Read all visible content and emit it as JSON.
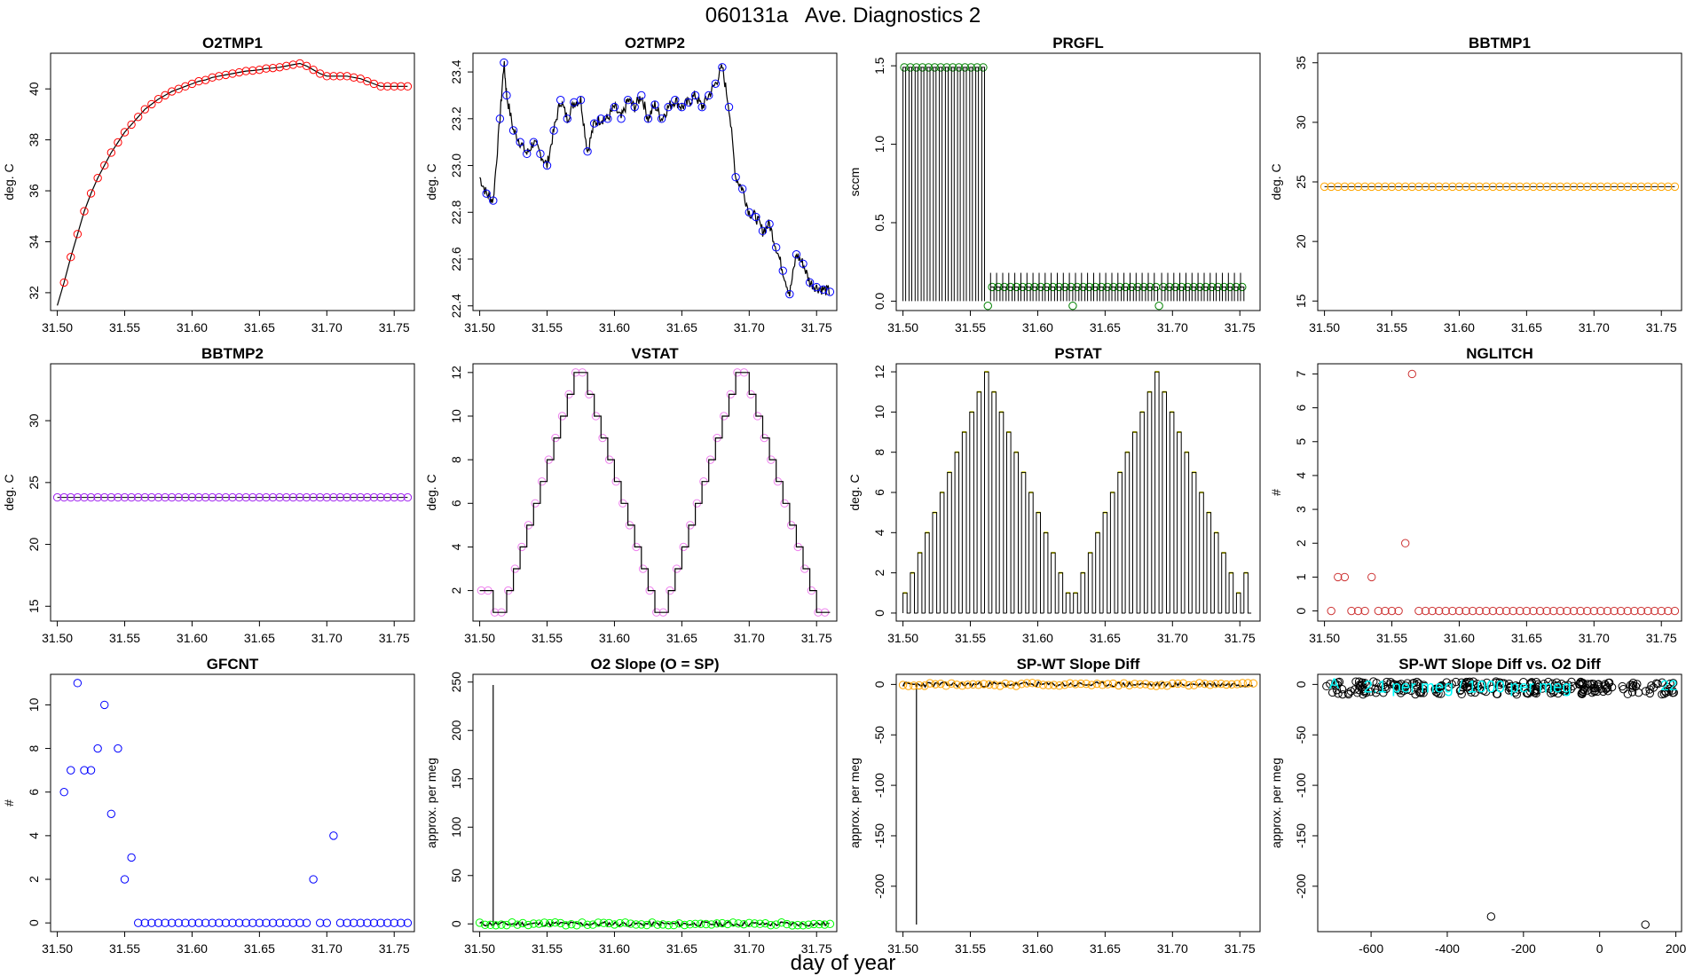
{
  "figure": {
    "title": "060131a   Ave. Diagnostics 2",
    "xlabel": "day of year"
  },
  "chart_data": [
    {
      "id": "o2tmp1",
      "type": "line",
      "title": "O2TMP1",
      "ylabel": "deg. C",
      "xlim": [
        31.495,
        31.765
      ],
      "ylim": [
        31.3,
        41.4
      ],
      "xticks": [
        31.5,
        31.55,
        31.6,
        31.65,
        31.7,
        31.75
      ],
      "xtick_labels": [
        "31.50",
        "31.55",
        "31.60",
        "31.65",
        "31.70",
        "31.75"
      ],
      "yticks": [
        32,
        34,
        36,
        38,
        40
      ],
      "ytick_labels": [
        "32",
        "34",
        "36",
        "38",
        "40"
      ],
      "x": [
        31.5,
        31.505,
        31.51,
        31.515,
        31.52,
        31.525,
        31.53,
        31.535,
        31.54,
        31.545,
        31.55,
        31.555,
        31.56,
        31.565,
        31.57,
        31.575,
        31.58,
        31.585,
        31.59,
        31.595,
        31.6,
        31.605,
        31.61,
        31.615,
        31.62,
        31.625,
        31.63,
        31.635,
        31.64,
        31.645,
        31.65,
        31.655,
        31.66,
        31.665,
        31.67,
        31.675,
        31.68,
        31.685,
        31.69,
        31.695,
        31.7,
        31.705,
        31.71,
        31.715,
        31.72,
        31.725,
        31.73,
        31.735,
        31.74,
        31.745,
        31.75,
        31.755,
        31.76
      ],
      "y": [
        31.5,
        32.4,
        33.4,
        34.3,
        35.2,
        35.9,
        36.5,
        37.0,
        37.5,
        37.9,
        38.3,
        38.6,
        38.9,
        39.2,
        39.4,
        39.6,
        39.75,
        39.9,
        40.0,
        40.1,
        40.2,
        40.3,
        40.35,
        40.45,
        40.5,
        40.55,
        40.6,
        40.65,
        40.7,
        40.72,
        40.75,
        40.8,
        40.82,
        40.85,
        40.9,
        40.95,
        41.0,
        40.9,
        40.75,
        40.6,
        40.5,
        40.5,
        40.5,
        40.5,
        40.45,
        40.4,
        40.3,
        40.2,
        40.1,
        40.1,
        40.1,
        40.1,
        40.1
      ],
      "line_color": "#000000",
      "marker_color": "#ff0000"
    },
    {
      "id": "o2tmp2",
      "type": "line",
      "title": "O2TMP2",
      "ylabel": "deg. C",
      "xlim": [
        31.495,
        31.765
      ],
      "ylim": [
        22.38,
        23.48
      ],
      "xticks": [
        31.5,
        31.55,
        31.6,
        31.65,
        31.7,
        31.75
      ],
      "xtick_labels": [
        "31.50",
        "31.55",
        "31.60",
        "31.65",
        "31.70",
        "31.75"
      ],
      "yticks": [
        22.4,
        22.6,
        22.8,
        23.0,
        23.2,
        23.4
      ],
      "ytick_labels": [
        "22.4",
        "22.6",
        "22.8",
        "23.0",
        "23.2",
        "23.4"
      ],
      "x": [
        31.5,
        31.505,
        31.51,
        31.515,
        31.518,
        31.52,
        31.525,
        31.53,
        31.535,
        31.54,
        31.545,
        31.55,
        31.555,
        31.56,
        31.565,
        31.57,
        31.575,
        31.58,
        31.585,
        31.59,
        31.595,
        31.6,
        31.605,
        31.61,
        31.615,
        31.62,
        31.625,
        31.63,
        31.635,
        31.64,
        31.645,
        31.65,
        31.655,
        31.66,
        31.665,
        31.67,
        31.675,
        31.68,
        31.685,
        31.69,
        31.695,
        31.7,
        31.705,
        31.71,
        31.715,
        31.72,
        31.725,
        31.73,
        31.735,
        31.74,
        31.745,
        31.75,
        31.755,
        31.76
      ],
      "y": [
        22.95,
        22.88,
        22.85,
        23.2,
        23.44,
        23.3,
        23.15,
        23.1,
        23.05,
        23.1,
        23.05,
        23.0,
        23.15,
        23.28,
        23.2,
        23.27,
        23.28,
        23.06,
        23.18,
        23.2,
        23.2,
        23.25,
        23.2,
        23.28,
        23.25,
        23.3,
        23.2,
        23.26,
        23.2,
        23.25,
        23.28,
        23.25,
        23.27,
        23.3,
        23.25,
        23.3,
        23.35,
        23.42,
        23.25,
        22.95,
        22.9,
        22.8,
        22.78,
        22.72,
        22.75,
        22.65,
        22.55,
        22.45,
        22.62,
        22.58,
        22.5,
        22.48,
        22.47,
        22.46
      ],
      "line_color": "#000000",
      "marker_color": "#0000ff"
    },
    {
      "id": "prgfl",
      "type": "line",
      "title": "PRGFL",
      "ylabel": "sccm",
      "xlim": [
        31.495,
        31.765
      ],
      "ylim": [
        -0.06,
        1.58
      ],
      "xticks": [
        31.5,
        31.55,
        31.6,
        31.65,
        31.7,
        31.75
      ],
      "xtick_labels": [
        "31.50",
        "31.55",
        "31.60",
        "31.65",
        "31.70",
        "31.75"
      ],
      "yticks": [
        0.0,
        0.5,
        1.0,
        1.5
      ],
      "ytick_labels": [
        "0.0",
        "0.5",
        "1.0",
        "1.5"
      ],
      "high_levels": [
        1.49,
        0.09,
        0.09,
        0.09,
        0.09
      ],
      "segments_x": [
        [
          31.5,
          31.562
        ],
        [
          31.565,
          31.625
        ],
        [
          31.628,
          31.69
        ],
        [
          31.692,
          31.755
        ]
      ],
      "line_color": "#000000",
      "marker_color": "#008000"
    },
    {
      "id": "bbtmp1",
      "type": "line",
      "title": "BBTMP1",
      "ylabel": "deg. C",
      "xlim": [
        31.495,
        31.765
      ],
      "ylim": [
        14.2,
        35.8
      ],
      "xticks": [
        31.5,
        31.55,
        31.6,
        31.65,
        31.7,
        31.75
      ],
      "xtick_labels": [
        "31.50",
        "31.55",
        "31.60",
        "31.65",
        "31.70",
        "31.75"
      ],
      "yticks": [
        15,
        20,
        25,
        30,
        35
      ],
      "ytick_labels": [
        "15",
        "20",
        "25",
        "30",
        "35"
      ],
      "constant": 24.6,
      "x_start": 31.5,
      "x_end": 31.76,
      "step": 0.005,
      "line_color": "#000000",
      "marker_color": "#ffa500"
    },
    {
      "id": "bbtmp2",
      "type": "line",
      "title": "BBTMP2",
      "ylabel": "deg. C",
      "xlim": [
        31.495,
        31.765
      ],
      "ylim": [
        13.8,
        34.6
      ],
      "xticks": [
        31.5,
        31.55,
        31.6,
        31.65,
        31.7,
        31.75
      ],
      "xtick_labels": [
        "31.50",
        "31.55",
        "31.60",
        "31.65",
        "31.70",
        "31.75"
      ],
      "yticks": [
        15,
        20,
        25,
        30
      ],
      "ytick_labels": [
        "15",
        "20",
        "25",
        "30"
      ],
      "constant": 23.8,
      "x_start": 31.5,
      "x_end": 31.76,
      "step": 0.005,
      "line_color": "#000000",
      "marker_color": "#a020f0"
    },
    {
      "id": "vstat",
      "type": "step",
      "title": "VSTAT",
      "ylabel": "deg. C",
      "xlim": [
        31.495,
        31.765
      ],
      "ylim": [
        0.6,
        12.4
      ],
      "xticks": [
        31.5,
        31.55,
        31.6,
        31.65,
        31.7,
        31.75
      ],
      "xtick_labels": [
        "31.50",
        "31.55",
        "31.60",
        "31.65",
        "31.70",
        "31.75"
      ],
      "yticks": [
        2,
        4,
        6,
        8,
        10,
        12
      ],
      "ytick_labels": [
        "2",
        "4",
        "6",
        "8",
        "10",
        "12"
      ],
      "levels": [
        2,
        2,
        1,
        1,
        2,
        3,
        4,
        5,
        6,
        7,
        8,
        9,
        10,
        11,
        12,
        12,
        11,
        10,
        9,
        8,
        7,
        6,
        5,
        4,
        3,
        2,
        1,
        1,
        2,
        3,
        4,
        5,
        6,
        7,
        8,
        9,
        10,
        11,
        12,
        12,
        11,
        10,
        9,
        8,
        7,
        6,
        5,
        4,
        3,
        2,
        1,
        1
      ],
      "x_start": 31.5,
      "step": 0.005,
      "line_color": "#000000",
      "marker_color": "#ee82ee"
    },
    {
      "id": "pstat",
      "type": "pulse",
      "title": "PSTAT",
      "ylabel": "deg. C",
      "xlim": [
        31.495,
        31.765
      ],
      "ylim": [
        -0.4,
        12.4
      ],
      "xticks": [
        31.5,
        31.55,
        31.6,
        31.65,
        31.7,
        31.75
      ],
      "xtick_labels": [
        "31.50",
        "31.55",
        "31.60",
        "31.65",
        "31.70",
        "31.75"
      ],
      "yticks": [
        0,
        2,
        4,
        6,
        8,
        10,
        12
      ],
      "ytick_labels": [
        "0",
        "2",
        "4",
        "6",
        "8",
        "10",
        "12"
      ],
      "levels": [
        1,
        2,
        3,
        4,
        5,
        6,
        7,
        8,
        9,
        10,
        11,
        12,
        11,
        10,
        9,
        8,
        7,
        6,
        5,
        4,
        3,
        2,
        1,
        1,
        2,
        3,
        4,
        5,
        6,
        7,
        8,
        9,
        10,
        11,
        12,
        11,
        10,
        9,
        8,
        7,
        6,
        5,
        4,
        3,
        2,
        1,
        2
      ],
      "x_start": 31.5,
      "step": 0.0055,
      "line_color": "#000000",
      "marker_color": "#ffff00"
    },
    {
      "id": "nglitch",
      "type": "scatter",
      "title": "NGLITCH",
      "ylabel": "#",
      "xlim": [
        31.495,
        31.765
      ],
      "ylim": [
        -0.3,
        7.3
      ],
      "xticks": [
        31.5,
        31.55,
        31.6,
        31.65,
        31.7,
        31.75
      ],
      "xtick_labels": [
        "31.50",
        "31.55",
        "31.60",
        "31.65",
        "31.70",
        "31.75"
      ],
      "yticks": [
        0,
        1,
        2,
        3,
        4,
        5,
        6,
        7
      ],
      "ytick_labels": [
        "0",
        "1",
        "2",
        "3",
        "4",
        "5",
        "6",
        "7"
      ],
      "x": [
        31.505,
        31.51,
        31.515,
        31.52,
        31.525,
        31.53,
        31.535,
        31.54,
        31.545,
        31.55,
        31.555,
        31.56,
        31.565,
        31.57,
        31.575,
        31.58,
        31.585,
        31.59,
        31.595,
        31.6,
        31.605,
        31.61,
        31.615,
        31.62,
        31.625,
        31.63,
        31.635,
        31.64,
        31.645,
        31.65,
        31.655,
        31.66,
        31.665,
        31.67,
        31.675,
        31.68,
        31.685,
        31.69,
        31.695,
        31.7,
        31.705,
        31.71,
        31.715,
        31.72,
        31.725,
        31.73,
        31.735,
        31.74,
        31.745,
        31.75,
        31.755,
        31.76
      ],
      "y": [
        0,
        1,
        1,
        0,
        0,
        0,
        1,
        0,
        0,
        0,
        0,
        2,
        7,
        0,
        0,
        0,
        0,
        0,
        0,
        0,
        0,
        0,
        0,
        0,
        0,
        0,
        0,
        0,
        0,
        0,
        0,
        0,
        0,
        0,
        0,
        0,
        0,
        0,
        0,
        0,
        0,
        0,
        0,
        0,
        0,
        0,
        0,
        0,
        0,
        0,
        0,
        0
      ],
      "marker_color": "#cd3333"
    },
    {
      "id": "gfcnt",
      "type": "scatter",
      "title": "GFCNT",
      "ylabel": "#",
      "xlim": [
        31.495,
        31.765
      ],
      "ylim": [
        -0.4,
        11.4
      ],
      "xticks": [
        31.5,
        31.55,
        31.6,
        31.65,
        31.7,
        31.75
      ],
      "xtick_labels": [
        "31.50",
        "31.55",
        "31.60",
        "31.65",
        "31.70",
        "31.75"
      ],
      "yticks": [
        0,
        2,
        4,
        6,
        8,
        10
      ],
      "ytick_labels": [
        "0",
        "2",
        "4",
        "6",
        "8",
        "10"
      ],
      "x": [
        31.505,
        31.51,
        31.515,
        31.52,
        31.525,
        31.53,
        31.535,
        31.54,
        31.545,
        31.55,
        31.555,
        31.56,
        31.565,
        31.57,
        31.575,
        31.58,
        31.585,
        31.59,
        31.595,
        31.6,
        31.605,
        31.61,
        31.615,
        31.62,
        31.625,
        31.63,
        31.635,
        31.64,
        31.645,
        31.65,
        31.655,
        31.66,
        31.665,
        31.67,
        31.675,
        31.68,
        31.685,
        31.69,
        31.695,
        31.7,
        31.705,
        31.71,
        31.715,
        31.72,
        31.725,
        31.73,
        31.735,
        31.74,
        31.745,
        31.75,
        31.755,
        31.76
      ],
      "y": [
        6,
        7,
        11,
        7,
        7,
        8,
        10,
        5,
        8,
        2,
        3,
        0,
        0,
        0,
        0,
        0,
        0,
        0,
        0,
        0,
        0,
        0,
        0,
        0,
        0,
        0,
        0,
        0,
        0,
        0,
        0,
        0,
        0,
        0,
        0,
        0,
        0,
        2,
        0,
        0,
        4,
        0,
        0,
        0,
        0,
        0,
        0,
        0,
        0,
        0,
        0,
        0
      ],
      "marker_color": "#0000ff"
    },
    {
      "id": "o2slope",
      "type": "line",
      "title": "O2 Slope (O = SP)",
      "ylabel": "approx. per meg",
      "xlim": [
        31.495,
        31.765
      ],
      "ylim": [
        -8,
        258
      ],
      "xticks": [
        31.5,
        31.55,
        31.6,
        31.65,
        31.7,
        31.75
      ],
      "xtick_labels": [
        "31.50",
        "31.55",
        "31.60",
        "31.65",
        "31.70",
        "31.75"
      ],
      "yticks": [
        0,
        50,
        100,
        150,
        200,
        250
      ],
      "ytick_labels": [
        "0",
        "50",
        "100",
        "150",
        "200",
        "250"
      ],
      "baseline": 0,
      "spike_x": 31.51,
      "spike_y": 247,
      "line_color": "#000000",
      "marker_color": "#00ff00"
    },
    {
      "id": "spwt",
      "type": "line",
      "title": "SP-WT Slope Diff",
      "ylabel": "approx. per meg",
      "xlim": [
        31.495,
        31.765
      ],
      "ylim": [
        -245,
        10
      ],
      "xticks": [
        31.5,
        31.55,
        31.6,
        31.65,
        31.7,
        31.75
      ],
      "xtick_labels": [
        "31.50",
        "31.55",
        "31.60",
        "31.65",
        "31.70",
        "31.75"
      ],
      "yticks": [
        0,
        -50,
        -100,
        -150,
        -200
      ],
      "ytick_labels": [
        "0",
        "-50",
        "-100",
        "-150",
        "-200"
      ],
      "baseline": 0,
      "spike_x": 31.51,
      "spike_y": -238,
      "line_color": "#000000",
      "marker_color": "#ffa500"
    },
    {
      "id": "spwt-vs-o2",
      "type": "scatter",
      "title": "SP-WT Slope Diff vs. O2 Diff",
      "ylabel": "approx. per meg",
      "xlim": [
        -740,
        215
      ],
      "ylim": [
        -245,
        10
      ],
      "xticks": [
        -600,
        -400,
        -200,
        0,
        200
      ],
      "xtick_labels": [
        "-600",
        "-400",
        "-200",
        "0",
        "200"
      ],
      "yticks": [
        0,
        -50,
        -100,
        -150,
        -200
      ],
      "ytick_labels": [
        "0",
        "-50",
        "-100",
        "-150",
        "-200"
      ],
      "cluster_x": [
        -720,
        200
      ],
      "cluster_y": [
        -10,
        3
      ],
      "outliers_x": [
        -285,
        120
      ],
      "outliers_y": [
        -230,
        -238
      ],
      "annotation": "2.1 per meg / 1000 per meg",
      "annotation_left": "A",
      "annotation_right": "22",
      "marker_color": "#000000",
      "annotation_color": "#00ffff"
    }
  ]
}
